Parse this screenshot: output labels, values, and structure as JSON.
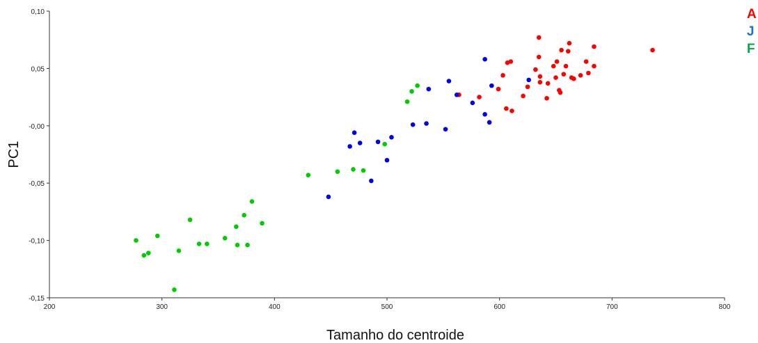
{
  "chart_data": {
    "type": "scatter",
    "title": "",
    "xlabel": "Tamanho do centroide",
    "ylabel": "PC1",
    "xlim": [
      200,
      800
    ],
    "ylim": [
      -0.15,
      0.1
    ],
    "xticks": [
      "200",
      "300",
      "400",
      "500",
      "600",
      "700",
      "800"
    ],
    "yticks": [
      "-0,15",
      "-0,10",
      "-0,05",
      "-0,00",
      "0,05",
      "0,10"
    ],
    "grid": false,
    "legend_position": "top-right",
    "series": [
      {
        "name": "A",
        "color": "#ff0000",
        "points": [
          [
            564,
            0.027
          ],
          [
            582,
            0.025
          ],
          [
            599,
            0.032
          ],
          [
            603,
            0.044
          ],
          [
            606,
            0.015
          ],
          [
            607,
            0.055
          ],
          [
            610,
            0.056
          ],
          [
            611,
            0.013
          ],
          [
            621,
            0.026
          ],
          [
            625,
            0.034
          ],
          [
            632,
            0.049
          ],
          [
            635,
            0.06
          ],
          [
            635,
            0.077
          ],
          [
            636,
            0.043
          ],
          [
            636,
            0.038
          ],
          [
            642,
            0.024
          ],
          [
            643,
            0.037
          ],
          [
            648,
            0.052
          ],
          [
            650,
            0.042
          ],
          [
            651,
            0.056
          ],
          [
            653,
            0.031
          ],
          [
            654,
            0.029
          ],
          [
            655,
            0.066
          ],
          [
            657,
            0.045
          ],
          [
            659,
            0.052
          ],
          [
            661,
            0.065
          ],
          [
            662,
            0.072
          ],
          [
            664,
            0.042
          ],
          [
            666,
            0.041
          ],
          [
            672,
            0.044
          ],
          [
            677,
            0.056
          ],
          [
            679,
            0.046
          ],
          [
            684,
            0.052
          ],
          [
            684,
            0.069
          ],
          [
            736,
            0.066
          ]
        ]
      },
      {
        "name": "J",
        "color": "#0000ee",
        "points": [
          [
            448,
            -0.062
          ],
          [
            467,
            -0.018
          ],
          [
            471,
            -0.006
          ],
          [
            476,
            -0.015
          ],
          [
            486,
            -0.048
          ],
          [
            492,
            -0.014
          ],
          [
            500,
            -0.03
          ],
          [
            504,
            -0.01
          ],
          [
            523,
            0.001
          ],
          [
            535,
            0.002
          ],
          [
            537,
            0.032
          ],
          [
            552,
            -0.003
          ],
          [
            555,
            0.039
          ],
          [
            562,
            0.027
          ],
          [
            576,
            0.02
          ],
          [
            587,
            0.058
          ],
          [
            587,
            0.01
          ],
          [
            591,
            0.003
          ],
          [
            593,
            0.035
          ],
          [
            626,
            0.04
          ]
        ]
      },
      {
        "name": "F",
        "color": "#00cc00",
        "points": [
          [
            277,
            -0.1
          ],
          [
            284,
            -0.113
          ],
          [
            288,
            -0.111
          ],
          [
            296,
            -0.096
          ],
          [
            311,
            -0.143
          ],
          [
            315,
            -0.109
          ],
          [
            325,
            -0.082
          ],
          [
            333,
            -0.103
          ],
          [
            340,
            -0.103
          ],
          [
            356,
            -0.098
          ],
          [
            366,
            -0.088
          ],
          [
            367,
            -0.104
          ],
          [
            373,
            -0.078
          ],
          [
            376,
            -0.104
          ],
          [
            380,
            -0.066
          ],
          [
            389,
            -0.085
          ],
          [
            430,
            -0.043
          ],
          [
            456,
            -0.04
          ],
          [
            470,
            -0.038
          ],
          [
            479,
            -0.039
          ],
          [
            498,
            -0.016
          ],
          [
            518,
            0.021
          ],
          [
            522,
            0.03
          ],
          [
            527,
            0.035
          ]
        ]
      }
    ]
  }
}
